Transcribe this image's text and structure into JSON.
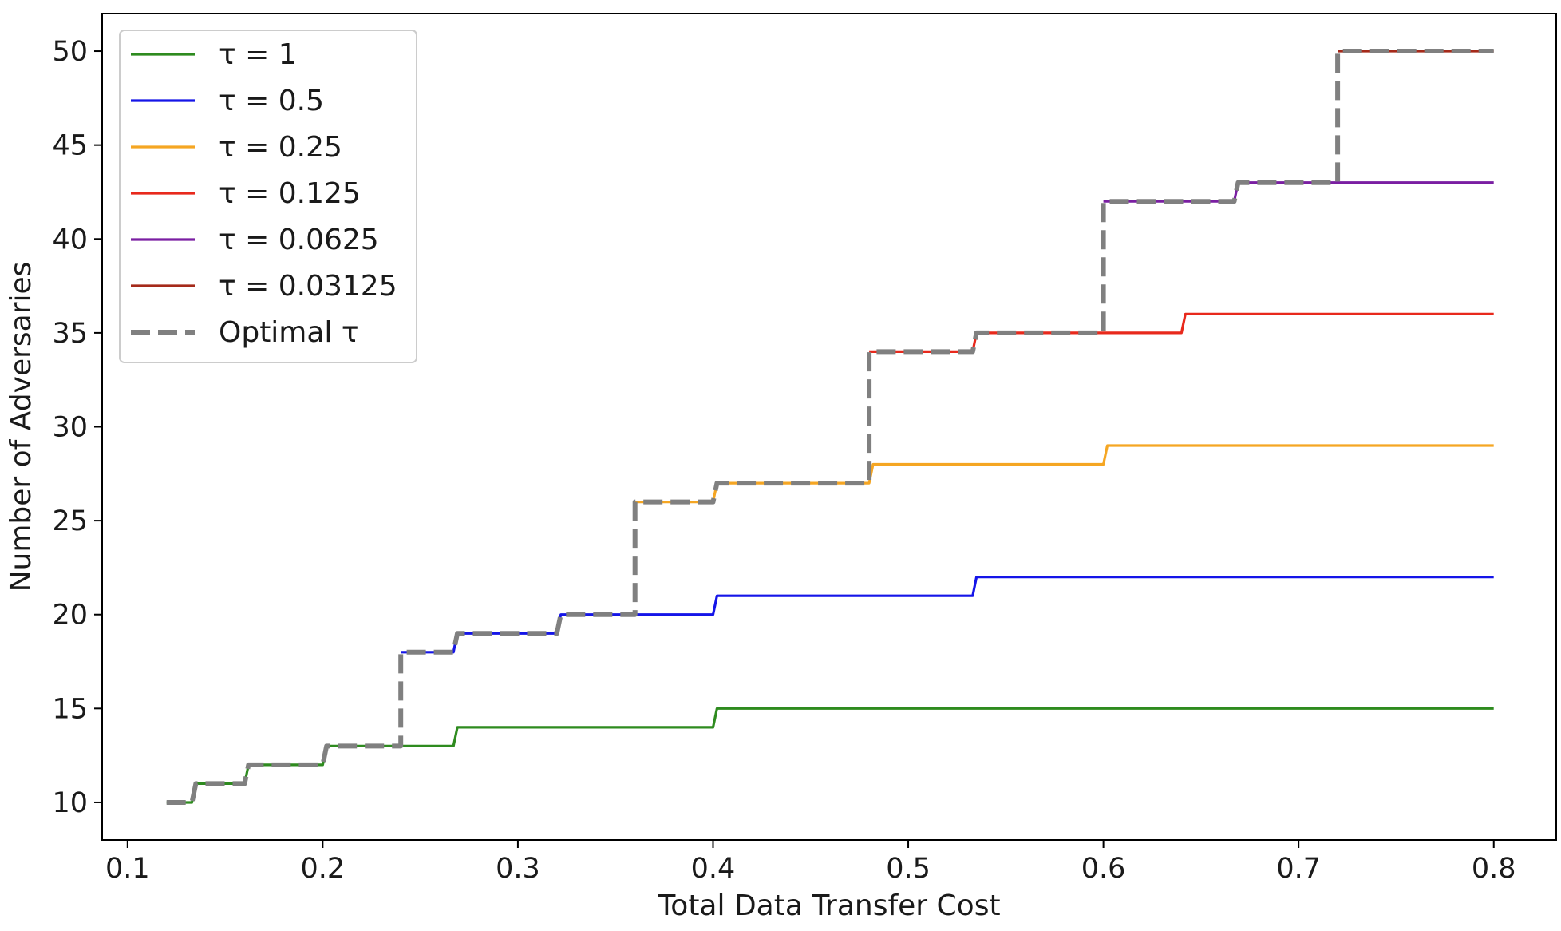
{
  "chart_data": {
    "type": "line",
    "title": "",
    "xlabel": "Total Data Transfer Cost",
    "ylabel": "Number of Adversaries",
    "xlim": [
      0.087,
      0.832
    ],
    "ylim": [
      8.0,
      52.0
    ],
    "xticks": [
      0.1,
      0.2,
      0.3,
      0.4,
      0.5,
      0.6,
      0.7,
      0.8
    ],
    "xtick_labels": [
      "0.1",
      "0.2",
      "0.3",
      "0.4",
      "0.5",
      "0.6",
      "0.7",
      "0.8"
    ],
    "yticks": [
      10,
      15,
      20,
      25,
      30,
      35,
      40,
      45,
      50
    ],
    "ytick_labels": [
      "10",
      "15",
      "20",
      "25",
      "30",
      "35",
      "40",
      "45",
      "50"
    ],
    "grid": false,
    "legend_position": "top-left",
    "series": [
      {
        "name": "τ = 1",
        "color": "#2e8b1f",
        "style": "solid",
        "points": [
          [
            0.12,
            10
          ],
          [
            0.133,
            10
          ],
          [
            0.135,
            11
          ],
          [
            0.16,
            11
          ],
          [
            0.162,
            12
          ],
          [
            0.2,
            12
          ],
          [
            0.202,
            13
          ],
          [
            0.267,
            13
          ],
          [
            0.269,
            14
          ],
          [
            0.4,
            14
          ],
          [
            0.402,
            15
          ],
          [
            0.8,
            15
          ]
        ]
      },
      {
        "name": "τ = 0.5",
        "color": "#1515e8",
        "style": "solid",
        "points": [
          [
            0.24,
            18
          ],
          [
            0.267,
            18
          ],
          [
            0.269,
            19
          ],
          [
            0.32,
            19
          ],
          [
            0.322,
            20
          ],
          [
            0.4,
            20
          ],
          [
            0.402,
            21
          ],
          [
            0.533,
            21
          ],
          [
            0.535,
            22
          ],
          [
            0.8,
            22
          ]
        ]
      },
      {
        "name": "τ = 0.25",
        "color": "#f5a623",
        "style": "solid",
        "points": [
          [
            0.36,
            26
          ],
          [
            0.4,
            26
          ],
          [
            0.402,
            27
          ],
          [
            0.48,
            27
          ],
          [
            0.482,
            28
          ],
          [
            0.6,
            28
          ],
          [
            0.602,
            29
          ],
          [
            0.8,
            29
          ]
        ]
      },
      {
        "name": "τ = 0.125",
        "color": "#e8291c",
        "style": "solid",
        "points": [
          [
            0.48,
            34
          ],
          [
            0.533,
            34
          ],
          [
            0.535,
            35
          ],
          [
            0.64,
            35
          ],
          [
            0.642,
            36
          ],
          [
            0.8,
            36
          ]
        ]
      },
      {
        "name": "τ = 0.0625",
        "color": "#7a1fa2",
        "style": "solid",
        "points": [
          [
            0.6,
            42
          ],
          [
            0.667,
            42
          ],
          [
            0.669,
            43
          ],
          [
            0.8,
            43
          ]
        ]
      },
      {
        "name": "τ = 0.03125",
        "color": "#a52a1a",
        "style": "solid",
        "points": [
          [
            0.72,
            50
          ],
          [
            0.8,
            50
          ]
        ]
      },
      {
        "name": "Optimal τ",
        "color": "#808080",
        "style": "dashed",
        "points": [
          [
            0.12,
            10
          ],
          [
            0.133,
            10
          ],
          [
            0.135,
            11
          ],
          [
            0.16,
            11
          ],
          [
            0.162,
            12
          ],
          [
            0.2,
            12
          ],
          [
            0.202,
            13
          ],
          [
            0.24,
            13
          ],
          [
            0.24,
            18
          ],
          [
            0.267,
            18
          ],
          [
            0.269,
            19
          ],
          [
            0.32,
            19
          ],
          [
            0.322,
            20
          ],
          [
            0.36,
            20
          ],
          [
            0.36,
            26
          ],
          [
            0.4,
            26
          ],
          [
            0.402,
            27
          ],
          [
            0.48,
            27
          ],
          [
            0.48,
            34
          ],
          [
            0.533,
            34
          ],
          [
            0.535,
            35
          ],
          [
            0.6,
            35
          ],
          [
            0.6,
            42
          ],
          [
            0.667,
            42
          ],
          [
            0.669,
            43
          ],
          [
            0.72,
            43
          ],
          [
            0.72,
            50
          ],
          [
            0.8,
            50
          ]
        ]
      }
    ]
  }
}
